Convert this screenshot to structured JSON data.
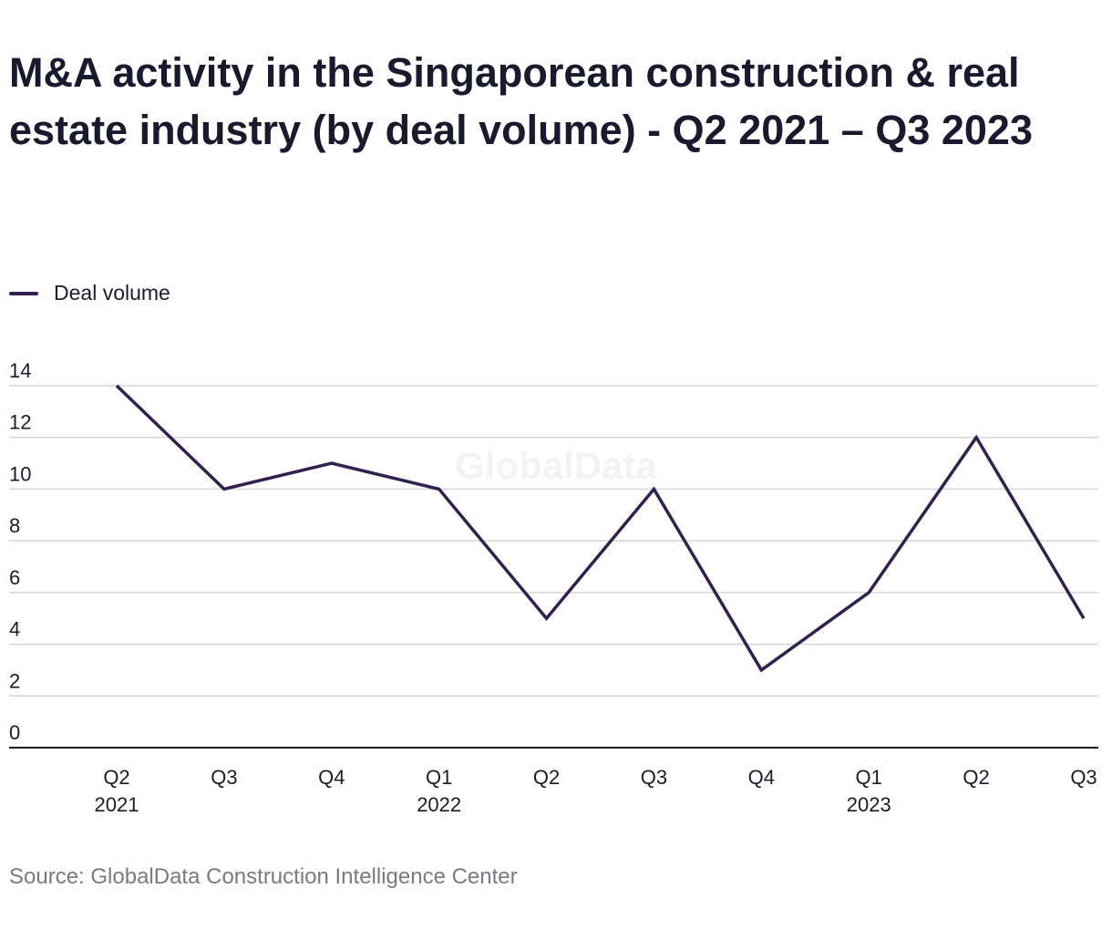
{
  "chart_data": {
    "type": "line",
    "title": "M&A activity in the Singaporean construction & real estate industry (by deal volume) - Q2 2021 – Q3 2023",
    "categories": [
      [
        "Q2",
        "2021"
      ],
      [
        "Q3",
        ""
      ],
      [
        "Q4",
        ""
      ],
      [
        "Q1",
        "2022"
      ],
      [
        "Q2",
        ""
      ],
      [
        "Q3",
        ""
      ],
      [
        "Q4",
        ""
      ],
      [
        "Q1",
        "2023"
      ],
      [
        "Q2",
        ""
      ],
      [
        "Q3",
        ""
      ]
    ],
    "series": [
      {
        "name": "Deal volume",
        "values": [
          14,
          10,
          11,
          10,
          5,
          10,
          3,
          6,
          12,
          5
        ],
        "color": "#33204f"
      }
    ],
    "yticks": [
      0,
      2,
      4,
      6,
      8,
      10,
      12,
      14
    ],
    "ylim": [
      0,
      14
    ],
    "xlabel": "",
    "ylabel": "",
    "grid": true,
    "legend_position": "top-left",
    "watermark": "GlobalData",
    "source": "Source: GlobalData Construction Intelligence Center"
  }
}
